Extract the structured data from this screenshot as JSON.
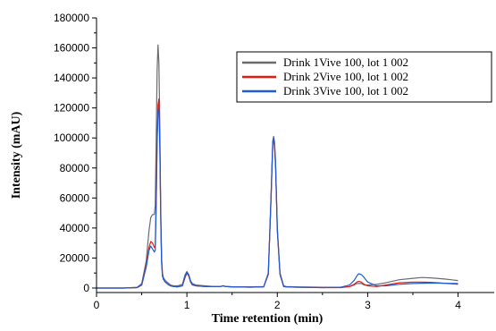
{
  "chart_data": {
    "type": "line",
    "title": "",
    "xlabel": "Time retention (min)",
    "ylabel": "Intensity (mAU)",
    "xlim": [
      0,
      4.4
    ],
    "ylim": [
      -3000,
      180000
    ],
    "xticks": [
      "0",
      "1",
      "2",
      "3",
      "4"
    ],
    "yticks": [
      "0",
      "20000",
      "40000",
      "60000",
      "80000",
      "100000",
      "120000",
      "140000",
      "160000",
      "180000"
    ],
    "legend": "top-right",
    "series": [
      {
        "name": "Drink 1Vive 100, lot 1 002",
        "color": "#6b6b6b",
        "x": [
          0,
          0.3,
          0.45,
          0.5,
          0.55,
          0.58,
          0.6,
          0.62,
          0.64,
          0.65,
          0.66,
          0.67,
          0.68,
          0.69,
          0.7,
          0.71,
          0.72,
          0.73,
          0.74,
          0.76,
          0.78,
          0.8,
          0.82,
          0.85,
          0.9,
          0.95,
          0.98,
          1.0,
          1.02,
          1.04,
          1.06,
          1.1,
          1.2,
          1.3,
          1.37,
          1.4,
          1.43,
          1.5,
          1.7,
          1.85,
          1.9,
          1.93,
          1.95,
          1.96,
          1.97,
          1.98,
          2.0,
          2.03,
          2.07,
          2.1,
          2.2,
          2.5,
          2.7,
          2.8,
          2.85,
          2.88,
          2.9,
          2.93,
          2.96,
          3.0,
          3.1,
          3.2,
          3.35,
          3.5,
          3.6,
          3.7,
          3.85,
          4.0
        ],
        "values": [
          0,
          0,
          500,
          3000,
          18000,
          38000,
          47000,
          49000,
          49000,
          55000,
          100000,
          145000,
          162000,
          150000,
          110000,
          55000,
          20000,
          10000,
          7000,
          5000,
          4000,
          3000,
          2000,
          1500,
          1500,
          2500,
          9000,
          11000,
          9000,
          5000,
          3000,
          2000,
          1500,
          1000,
          1000,
          1500,
          1000,
          800,
          800,
          1000,
          10000,
          60000,
          98000,
          101000,
          97000,
          85000,
          40000,
          10000,
          1500,
          1000,
          800,
          500,
          500,
          1000,
          2000,
          3000,
          3000,
          3000,
          2000,
          2000,
          2500,
          3500,
          5500,
          6500,
          7000,
          6800,
          6000,
          5000
        ]
      },
      {
        "name": "Drink 2Vive 100, lot 1 002",
        "color": "#e8190f",
        "x": [
          0,
          0.3,
          0.45,
          0.5,
          0.55,
          0.58,
          0.6,
          0.62,
          0.64,
          0.65,
          0.66,
          0.67,
          0.68,
          0.69,
          0.7,
          0.71,
          0.72,
          0.73,
          0.74,
          0.76,
          0.78,
          0.8,
          0.82,
          0.85,
          0.9,
          0.95,
          0.98,
          1.0,
          1.02,
          1.04,
          1.06,
          1.1,
          1.2,
          1.3,
          1.37,
          1.4,
          1.43,
          1.5,
          1.7,
          1.85,
          1.9,
          1.93,
          1.95,
          1.96,
          1.97,
          1.98,
          2.0,
          2.03,
          2.07,
          2.1,
          2.2,
          2.5,
          2.7,
          2.8,
          2.85,
          2.88,
          2.9,
          2.93,
          2.96,
          3.0,
          3.1,
          3.2,
          3.35,
          3.5,
          3.6,
          3.7,
          3.85,
          4.0
        ],
        "values": [
          0,
          0,
          300,
          2000,
          15000,
          27000,
          31000,
          30000,
          27000,
          28000,
          60000,
          100000,
          122000,
          126000,
          100000,
          50000,
          18000,
          8000,
          6000,
          4000,
          3000,
          2000,
          1500,
          1000,
          800,
          1500,
          7000,
          10000,
          8000,
          4000,
          2000,
          1500,
          1000,
          1000,
          1000,
          1500,
          1000,
          800,
          600,
          800,
          9000,
          58000,
          96000,
          99000,
          94000,
          82000,
          38000,
          9000,
          1000,
          800,
          600,
          300,
          300,
          1000,
          2500,
          4000,
          4500,
          4000,
          2500,
          1500,
          1000,
          2000,
          3500,
          4000,
          4000,
          3800,
          3200,
          2500
        ]
      },
      {
        "name": "Drink 3Vive 100, lot 1 002",
        "color": "#1d5ad6",
        "x": [
          0,
          0.3,
          0.45,
          0.5,
          0.55,
          0.58,
          0.6,
          0.62,
          0.64,
          0.65,
          0.66,
          0.67,
          0.68,
          0.69,
          0.7,
          0.71,
          0.72,
          0.73,
          0.74,
          0.76,
          0.78,
          0.8,
          0.82,
          0.85,
          0.9,
          0.95,
          0.98,
          1.0,
          1.02,
          1.04,
          1.06,
          1.1,
          1.2,
          1.3,
          1.37,
          1.4,
          1.43,
          1.5,
          1.7,
          1.85,
          1.9,
          1.93,
          1.95,
          1.96,
          1.97,
          1.98,
          2.0,
          2.03,
          2.07,
          2.1,
          2.2,
          2.5,
          2.7,
          2.8,
          2.85,
          2.88,
          2.9,
          2.93,
          2.96,
          3.0,
          3.1,
          3.2,
          3.35,
          3.5,
          3.6,
          3.7,
          3.85,
          4.0
        ],
        "values": [
          0,
          0,
          300,
          2000,
          14000,
          25000,
          28000,
          26000,
          24000,
          25000,
          55000,
          95000,
          118000,
          120000,
          95000,
          48000,
          17000,
          8000,
          6000,
          4000,
          3000,
          2000,
          1500,
          1000,
          800,
          1500,
          7500,
          10500,
          8500,
          4500,
          2500,
          1500,
          1000,
          1000,
          1000,
          1500,
          1000,
          800,
          600,
          800,
          9500,
          59000,
          97000,
          100000,
          95000,
          83000,
          39000,
          9500,
          1000,
          800,
          600,
          300,
          500,
          2000,
          5000,
          8000,
          9500,
          9000,
          7000,
          4000,
          1500,
          1500,
          2500,
          3000,
          3200,
          3300,
          3200,
          3000
        ]
      }
    ]
  }
}
